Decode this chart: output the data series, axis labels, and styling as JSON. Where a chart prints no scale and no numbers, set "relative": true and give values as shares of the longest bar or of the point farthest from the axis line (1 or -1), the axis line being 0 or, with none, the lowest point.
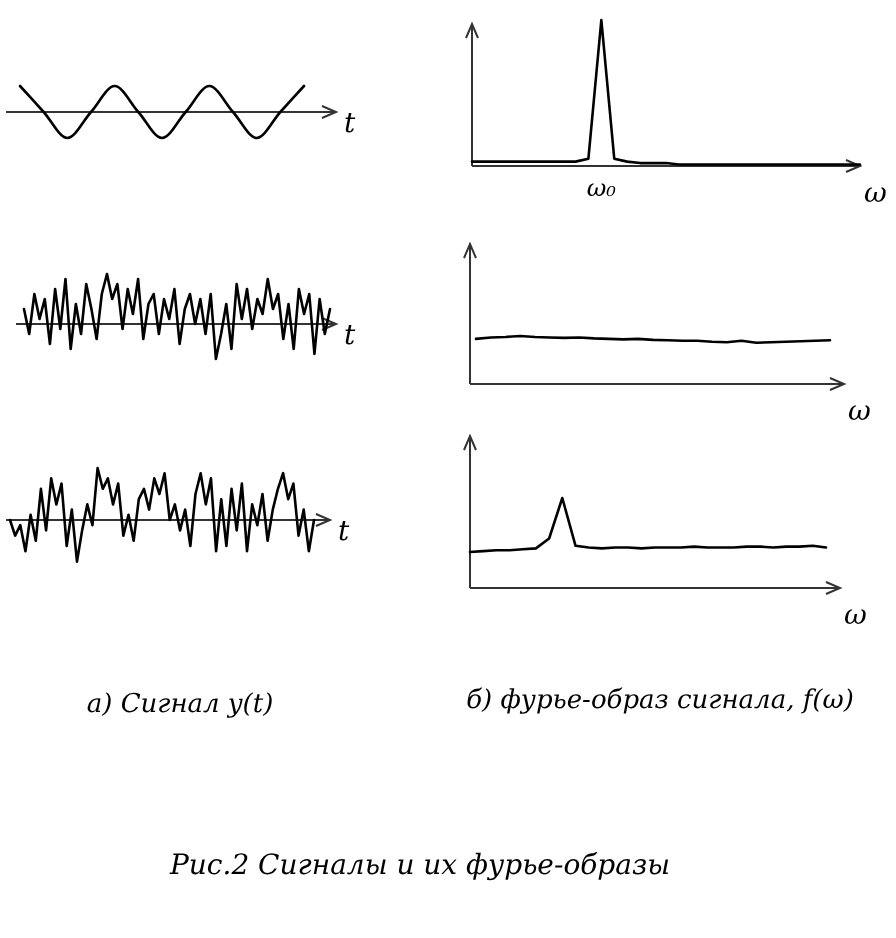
{
  "chart_data": [
    {
      "type": "line",
      "relative": true,
      "xlabel": "t",
      "categories": [
        null,
        null,
        null,
        null,
        null,
        null,
        null,
        null,
        null,
        null,
        null,
        null,
        null
      ],
      "series": [
        {
          "color": "#000000",
          "values": [
            1,
            0,
            -1,
            0,
            1,
            0,
            -1,
            0,
            1,
            0,
            -1,
            0,
            1
          ]
        }
      ]
    },
    {
      "type": "line",
      "relative": true,
      "xlabel": "ω",
      "annotations": [
        "ω₀"
      ],
      "categories": [
        null,
        null,
        null,
        null,
        null,
        null,
        null,
        null,
        null,
        null,
        null,
        null,
        null,
        null,
        null,
        null,
        null,
        null,
        null,
        null,
        null,
        null,
        null,
        null,
        null,
        null,
        null,
        null,
        null,
        null,
        null
      ],
      "series": [
        {
          "color": "#000000",
          "values": [
            0.03,
            0.03,
            0.03,
            0.03,
            0.03,
            0.03,
            0.03,
            0.03,
            0.03,
            0.05,
            1,
            0.05,
            0.03,
            0.02,
            0.02,
            0.02,
            0.01,
            0.01,
            0.01,
            0.01,
            0.01,
            0.01,
            0.01,
            0.01,
            0.01,
            0.01,
            0.01,
            0.01,
            0.01,
            0.01,
            0.01
          ]
        }
      ]
    },
    {
      "type": "line",
      "relative": true,
      "xlabel": "t",
      "categories": [
        null,
        null,
        null,
        null,
        null,
        null,
        null,
        null,
        null,
        null,
        null,
        null,
        null,
        null,
        null,
        null,
        null,
        null,
        null,
        null,
        null,
        null,
        null,
        null,
        null,
        null,
        null,
        null,
        null,
        null,
        null,
        null,
        null,
        null,
        null,
        null,
        null,
        null,
        null,
        null,
        null,
        null,
        null,
        null,
        null,
        null,
        null,
        null,
        null,
        null,
        null,
        null,
        null,
        null,
        null,
        null,
        null,
        null,
        null,
        null
      ],
      "series": [
        {
          "color": "#000000",
          "values": [
            0.3,
            -0.2,
            0.6,
            0.1,
            0.5,
            -0.4,
            0.7,
            -0.1,
            0.9,
            -0.5,
            0.4,
            -0.2,
            0.8,
            0.3,
            -0.3,
            0.6,
            1,
            0.5,
            0.8,
            -0.1,
            0.7,
            0.2,
            0.9,
            -0.3,
            0.4,
            0.6,
            -0.2,
            0.5,
            0.1,
            0.7,
            -0.4,
            0.3,
            0.6,
            0,
            0.5,
            -0.2,
            0.6,
            -0.7,
            -0.2,
            0.4,
            -0.5,
            0.8,
            0.1,
            0.7,
            -0.1,
            0.5,
            0.2,
            0.9,
            0.3,
            0.6,
            -0.3,
            0.4,
            -0.5,
            0.7,
            0.2,
            0.6,
            -0.6,
            0.5,
            -0.2,
            0.3
          ]
        }
      ]
    },
    {
      "type": "line",
      "relative": true,
      "xlabel": "ω",
      "categories": [
        null,
        null,
        null,
        null,
        null,
        null,
        null,
        null,
        null,
        null,
        null,
        null,
        null,
        null,
        null,
        null,
        null,
        null,
        null,
        null,
        null,
        null,
        null,
        null,
        null
      ],
      "series": [
        {
          "color": "#000000",
          "values": [
            0.94,
            0.97,
            0.98,
            1,
            0.98,
            0.97,
            0.96,
            0.97,
            0.95,
            0.94,
            0.93,
            0.94,
            0.92,
            0.91,
            0.9,
            0.9,
            0.88,
            0.87,
            0.9,
            0.86,
            0.87,
            0.88,
            0.89,
            0.9,
            0.91
          ]
        }
      ]
    },
    {
      "type": "line",
      "relative": true,
      "xlabel": "t",
      "categories": [
        null,
        null,
        null,
        null,
        null,
        null,
        null,
        null,
        null,
        null,
        null,
        null,
        null,
        null,
        null,
        null,
        null,
        null,
        null,
        null,
        null,
        null,
        null,
        null,
        null,
        null,
        null,
        null,
        null,
        null,
        null,
        null,
        null,
        null,
        null,
        null,
        null,
        null,
        null,
        null,
        null,
        null,
        null,
        null,
        null,
        null,
        null,
        null,
        null,
        null,
        null,
        null,
        null,
        null,
        null,
        null,
        null,
        null,
        null,
        null
      ],
      "annotations": [
        "а) Сигнал y(t)"
      ],
      "series": [
        {
          "color": "#000000",
          "values": [
            0,
            -0.3,
            -0.1,
            -0.6,
            0.1,
            -0.4,
            0.6,
            -0.2,
            0.8,
            0.3,
            0.7,
            -0.5,
            0.2,
            -0.8,
            -0.2,
            0.3,
            -0.1,
            1,
            0.6,
            0.8,
            0.3,
            0.7,
            -0.3,
            0.1,
            -0.4,
            0.4,
            0.6,
            0.2,
            0.8,
            0.5,
            0.9,
            0,
            0.3,
            -0.2,
            0.2,
            -0.5,
            0.5,
            0.9,
            0.3,
            0.8,
            -0.6,
            0.4,
            -0.5,
            0.6,
            -0.2,
            0.7,
            -0.6,
            0.3,
            -0.1,
            0.5,
            -0.4,
            0.2,
            0.6,
            0.9,
            0.4,
            0.7,
            -0.3,
            0.2,
            -0.6,
            0
          ]
        }
      ]
    },
    {
      "type": "line",
      "relative": true,
      "xlabel": "ω",
      "annotations": [
        "б) фурье-образ сигнала, f(ω)",
        "Рис.2   Сигналы и их фурье-образы"
      ],
      "categories": [
        null,
        null,
        null,
        null,
        null,
        null,
        null,
        null,
        null,
        null,
        null,
        null,
        null,
        null,
        null,
        null,
        null,
        null,
        null,
        null,
        null,
        null,
        null,
        null,
        null,
        null,
        null,
        null
      ],
      "series": [
        {
          "color": "#000000",
          "values": [
            0.4,
            0.41,
            0.42,
            0.42,
            0.43,
            0.44,
            0.55,
            1,
            0.47,
            0.45,
            0.44,
            0.45,
            0.45,
            0.44,
            0.45,
            0.45,
            0.45,
            0.46,
            0.45,
            0.45,
            0.45,
            0.46,
            0.46,
            0.45,
            0.46,
            0.46,
            0.47,
            0.45
          ]
        }
      ]
    }
  ]
}
